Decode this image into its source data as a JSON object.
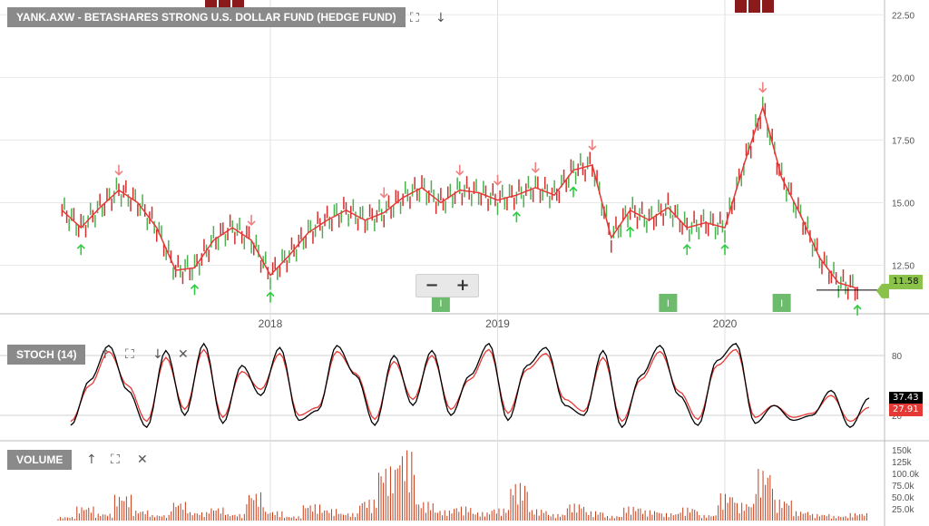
{
  "main": {
    "title": "YANK.AXW - BETASHARES STRONG U.S. DOLLAR FUND (HEDGE FUND)",
    "icons": [
      "fullscreen-icon",
      "download-arrow-icon"
    ],
    "zoom_out_label": "−",
    "zoom_in_label": "+",
    "last_price": "11.58",
    "event_marker_label": "I"
  },
  "stoch_panel": {
    "title": "STOCH (14)",
    "value_k": "37.43",
    "value_d": "27.91"
  },
  "volume_panel": {
    "title": "VOLUME"
  },
  "colors": {
    "candle_up": "#4caf50",
    "candle_down": "#d32f2f",
    "moving_average": "#e53935",
    "stoch_k": "#000000",
    "stoch_d": "#e53935",
    "volume": "#c63b16",
    "buy_arrow": "#2ecc40",
    "sell_arrow": "#f08080",
    "title_bg": "#8a8a8a"
  },
  "chart_data": [
    {
      "type": "line",
      "title": "YANK.AXW - BETASHARES STRONG U.S. DOLLAR FUND (HEDGE FUND)",
      "x_ticks": [
        "2018",
        "2019",
        "2020"
      ],
      "y_ticks": [
        "12.50",
        "15.00",
        "17.50",
        "20.00",
        "22.50"
      ],
      "ylim": [
        10.6,
        22.8
      ],
      "grid": true,
      "series": [
        {
          "x": [
            "2017-02",
            "2017-03",
            "2017-04",
            "2017-05",
            "2017-06",
            "2017-07",
            "2017-08",
            "2017-09",
            "2017-10",
            "2017-11",
            "2017-12",
            "2018-01",
            "2018-02",
            "2018-03",
            "2018-04",
            "2018-05",
            "2018-06",
            "2018-07",
            "2018-08",
            "2018-09",
            "2018-10",
            "2018-11",
            "2018-12",
            "2019-01",
            "2019-02",
            "2019-03",
            "2019-04",
            "2019-05",
            "2019-06",
            "2019-07",
            "2019-08",
            "2019-09",
            "2019-10",
            "2019-11",
            "2019-12",
            "2020-01",
            "2020-02",
            "2020-03",
            "2020-04",
            "2020-05",
            "2020-06",
            "2020-07",
            "2020-08"
          ],
          "values": [
            14.7,
            14.0,
            14.8,
            15.5,
            15.0,
            14.0,
            12.3,
            12.4,
            13.5,
            14.0,
            13.5,
            12.1,
            12.9,
            13.8,
            14.3,
            14.7,
            14.3,
            14.6,
            15.2,
            15.6,
            15.0,
            15.5,
            15.4,
            15.1,
            15.3,
            15.6,
            15.3,
            16.3,
            16.5,
            13.6,
            14.7,
            14.3,
            14.8,
            14.0,
            14.2,
            14.0,
            16.5,
            18.8,
            16.0,
            14.5,
            12.8,
            11.8,
            11.58
          ]
        }
      ],
      "sell_arrows": [
        "2017-05",
        "2017-12",
        "2018-07",
        "2018-11",
        "2019-01",
        "2019-03",
        "2019-06",
        "2020-03"
      ],
      "buy_arrows": [
        "2017-03",
        "2017-09",
        "2018-01",
        "2019-02",
        "2019-05",
        "2019-08",
        "2019-11",
        "2020-01",
        "2020-08"
      ]
    },
    {
      "type": "line",
      "title": "STOCH (14)",
      "y_ticks": [
        "20",
        "80"
      ],
      "ylim": [
        0,
        100
      ],
      "series": [
        {
          "name": "%K",
          "values": [
            10,
            55,
            90,
            45,
            8,
            85,
            20,
            92,
            12,
            70,
            40,
            88,
            15,
            25,
            90,
            60,
            10,
            80,
            30,
            85,
            20,
            60,
            92,
            15,
            70,
            88,
            30,
            20,
            85,
            8,
            60,
            90,
            40,
            10,
            75,
            92,
            12,
            30,
            15,
            20,
            45,
            8,
            37.43
          ]
        },
        {
          "name": "%D",
          "values": [
            14,
            50,
            84,
            50,
            14,
            78,
            26,
            86,
            18,
            64,
            46,
            82,
            20,
            28,
            84,
            62,
            16,
            74,
            36,
            80,
            26,
            56,
            86,
            22,
            66,
            82,
            36,
            24,
            78,
            14,
            56,
            84,
            44,
            16,
            70,
            86,
            18,
            30,
            18,
            22,
            40,
            14,
            27.91
          ]
        }
      ]
    },
    {
      "type": "bar",
      "title": "VOLUME",
      "y_ticks": [
        "25.0k",
        "50.0k",
        "75.0k",
        "100.0k",
        "125k",
        "150k"
      ],
      "ylim": [
        0,
        160000
      ],
      "values": [
        8000,
        30000,
        15000,
        55000,
        22000,
        12000,
        40000,
        18000,
        28000,
        14000,
        60000,
        20000,
        9000,
        35000,
        25000,
        16000,
        45000,
        115000,
        150000,
        40000,
        22000,
        30000,
        18000,
        26000,
        80000,
        24000,
        14000,
        36000,
        20000,
        10000,
        30000,
        22000,
        16000,
        28000,
        12000,
        58000,
        38000,
        110000,
        45000,
        20000,
        14000,
        10000,
        16000
      ]
    }
  ]
}
